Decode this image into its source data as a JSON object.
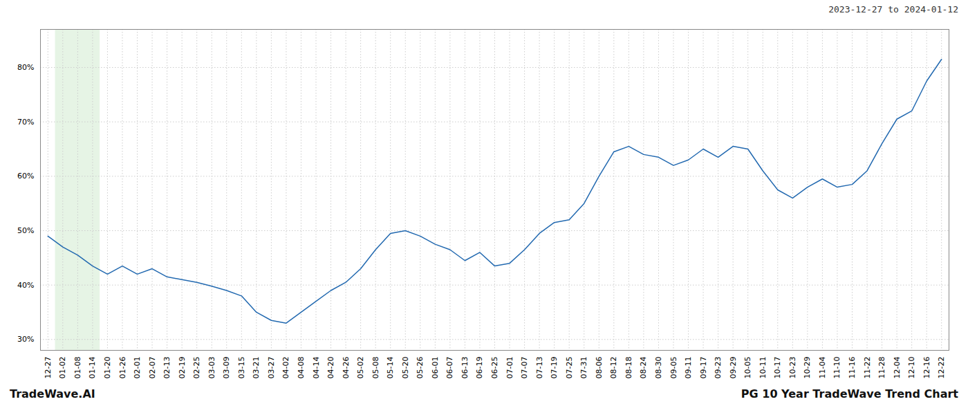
{
  "chart_data": {
    "type": "line",
    "title": "PG 10 Year TradeWave Trend Chart",
    "subtitle": "2023-12-27 to 2024-01-12",
    "annotations": [
      "TradeWave.AI"
    ],
    "categories": [
      "12-27",
      "01-02",
      "01-08",
      "01-14",
      "01-20",
      "01-26",
      "02-01",
      "02-07",
      "02-13",
      "02-19",
      "02-25",
      "03-03",
      "03-09",
      "03-15",
      "03-21",
      "03-27",
      "04-02",
      "04-08",
      "04-14",
      "04-20",
      "04-26",
      "05-02",
      "05-08",
      "05-14",
      "05-20",
      "05-26",
      "06-01",
      "06-07",
      "06-13",
      "06-19",
      "06-25",
      "07-01",
      "07-07",
      "07-13",
      "07-19",
      "07-25",
      "07-31",
      "08-06",
      "08-12",
      "08-18",
      "08-24",
      "08-30",
      "09-05",
      "09-11",
      "09-17",
      "09-23",
      "09-29",
      "10-05",
      "10-11",
      "10-17",
      "10-23",
      "10-29",
      "11-04",
      "11-10",
      "11-16",
      "11-22",
      "11-28",
      "12-04",
      "12-10",
      "12-16",
      "12-22"
    ],
    "values": [
      49.0,
      47.0,
      45.5,
      43.5,
      42.0,
      43.5,
      42.0,
      43.0,
      41.5,
      41.0,
      40.5,
      39.8,
      39.0,
      38.0,
      35.0,
      33.5,
      33.0,
      35.0,
      37.0,
      39.0,
      40.5,
      43.0,
      46.5,
      49.5,
      50.0,
      49.0,
      47.5,
      46.5,
      44.5,
      46.0,
      43.5,
      44.0,
      46.5,
      49.5,
      51.5,
      52.0,
      55.0,
      60.0,
      64.5,
      65.5,
      64.0,
      63.5,
      62.0,
      63.0,
      65.0,
      63.5,
      65.5,
      65.0,
      61.0,
      57.5,
      56.0,
      58.0,
      59.5,
      58.0,
      58.5,
      61.0,
      66.0,
      70.5,
      72.0,
      77.5,
      81.5
    ],
    "color": "#2269b0",
    "ylim": [
      28,
      87
    ],
    "yticks": [
      {
        "value": 30,
        "label": "30%"
      },
      {
        "value": 40,
        "label": "40%"
      },
      {
        "value": 50,
        "label": "50%"
      },
      {
        "value": 60,
        "label": "60%"
      },
      {
        "value": 70,
        "label": "70%"
      },
      {
        "value": 80,
        "label": "80%"
      }
    ],
    "grid": true,
    "highlight": {
      "start": "01-02",
      "end": "01-14",
      "color": "#c8e6c5"
    }
  }
}
